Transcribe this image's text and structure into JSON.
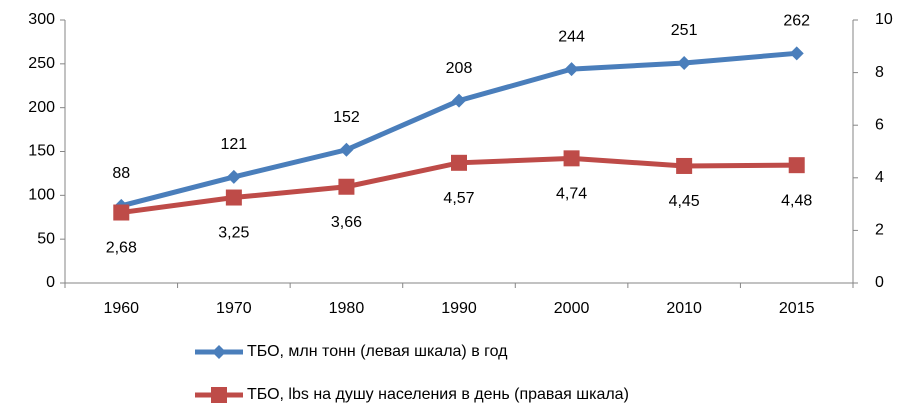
{
  "chart_data": {
    "type": "line",
    "categories": [
      "1960",
      "1970",
      "1980",
      "1990",
      "2000",
      "2010",
      "2015"
    ],
    "series": [
      {
        "name": "ТБО, млн тонн (левая шкала) в год",
        "color": "#4a7ebb",
        "marker": "diamond",
        "axis": "y",
        "values": [
          88,
          121,
          152,
          208,
          244,
          251,
          262
        ]
      },
      {
        "name": "ТБО, lbs на душу населения в день (правая шкала)",
        "color": "#be4b48",
        "marker": "square",
        "axis": "y2",
        "values": [
          2.68,
          3.25,
          3.66,
          4.57,
          4.74,
          4.45,
          4.48
        ],
        "value_labels": [
          "2,68",
          "3,25",
          "3,66",
          "4,57",
          "4,74",
          "4,45",
          "4,48"
        ]
      }
    ],
    "ylim": [
      0,
      300
    ],
    "yticks": [
      0,
      50,
      100,
      150,
      200,
      250,
      300
    ],
    "y2lim": [
      0,
      10
    ],
    "y2ticks": [
      0,
      2,
      4,
      6,
      8,
      10
    ],
    "legend": "bottom"
  }
}
